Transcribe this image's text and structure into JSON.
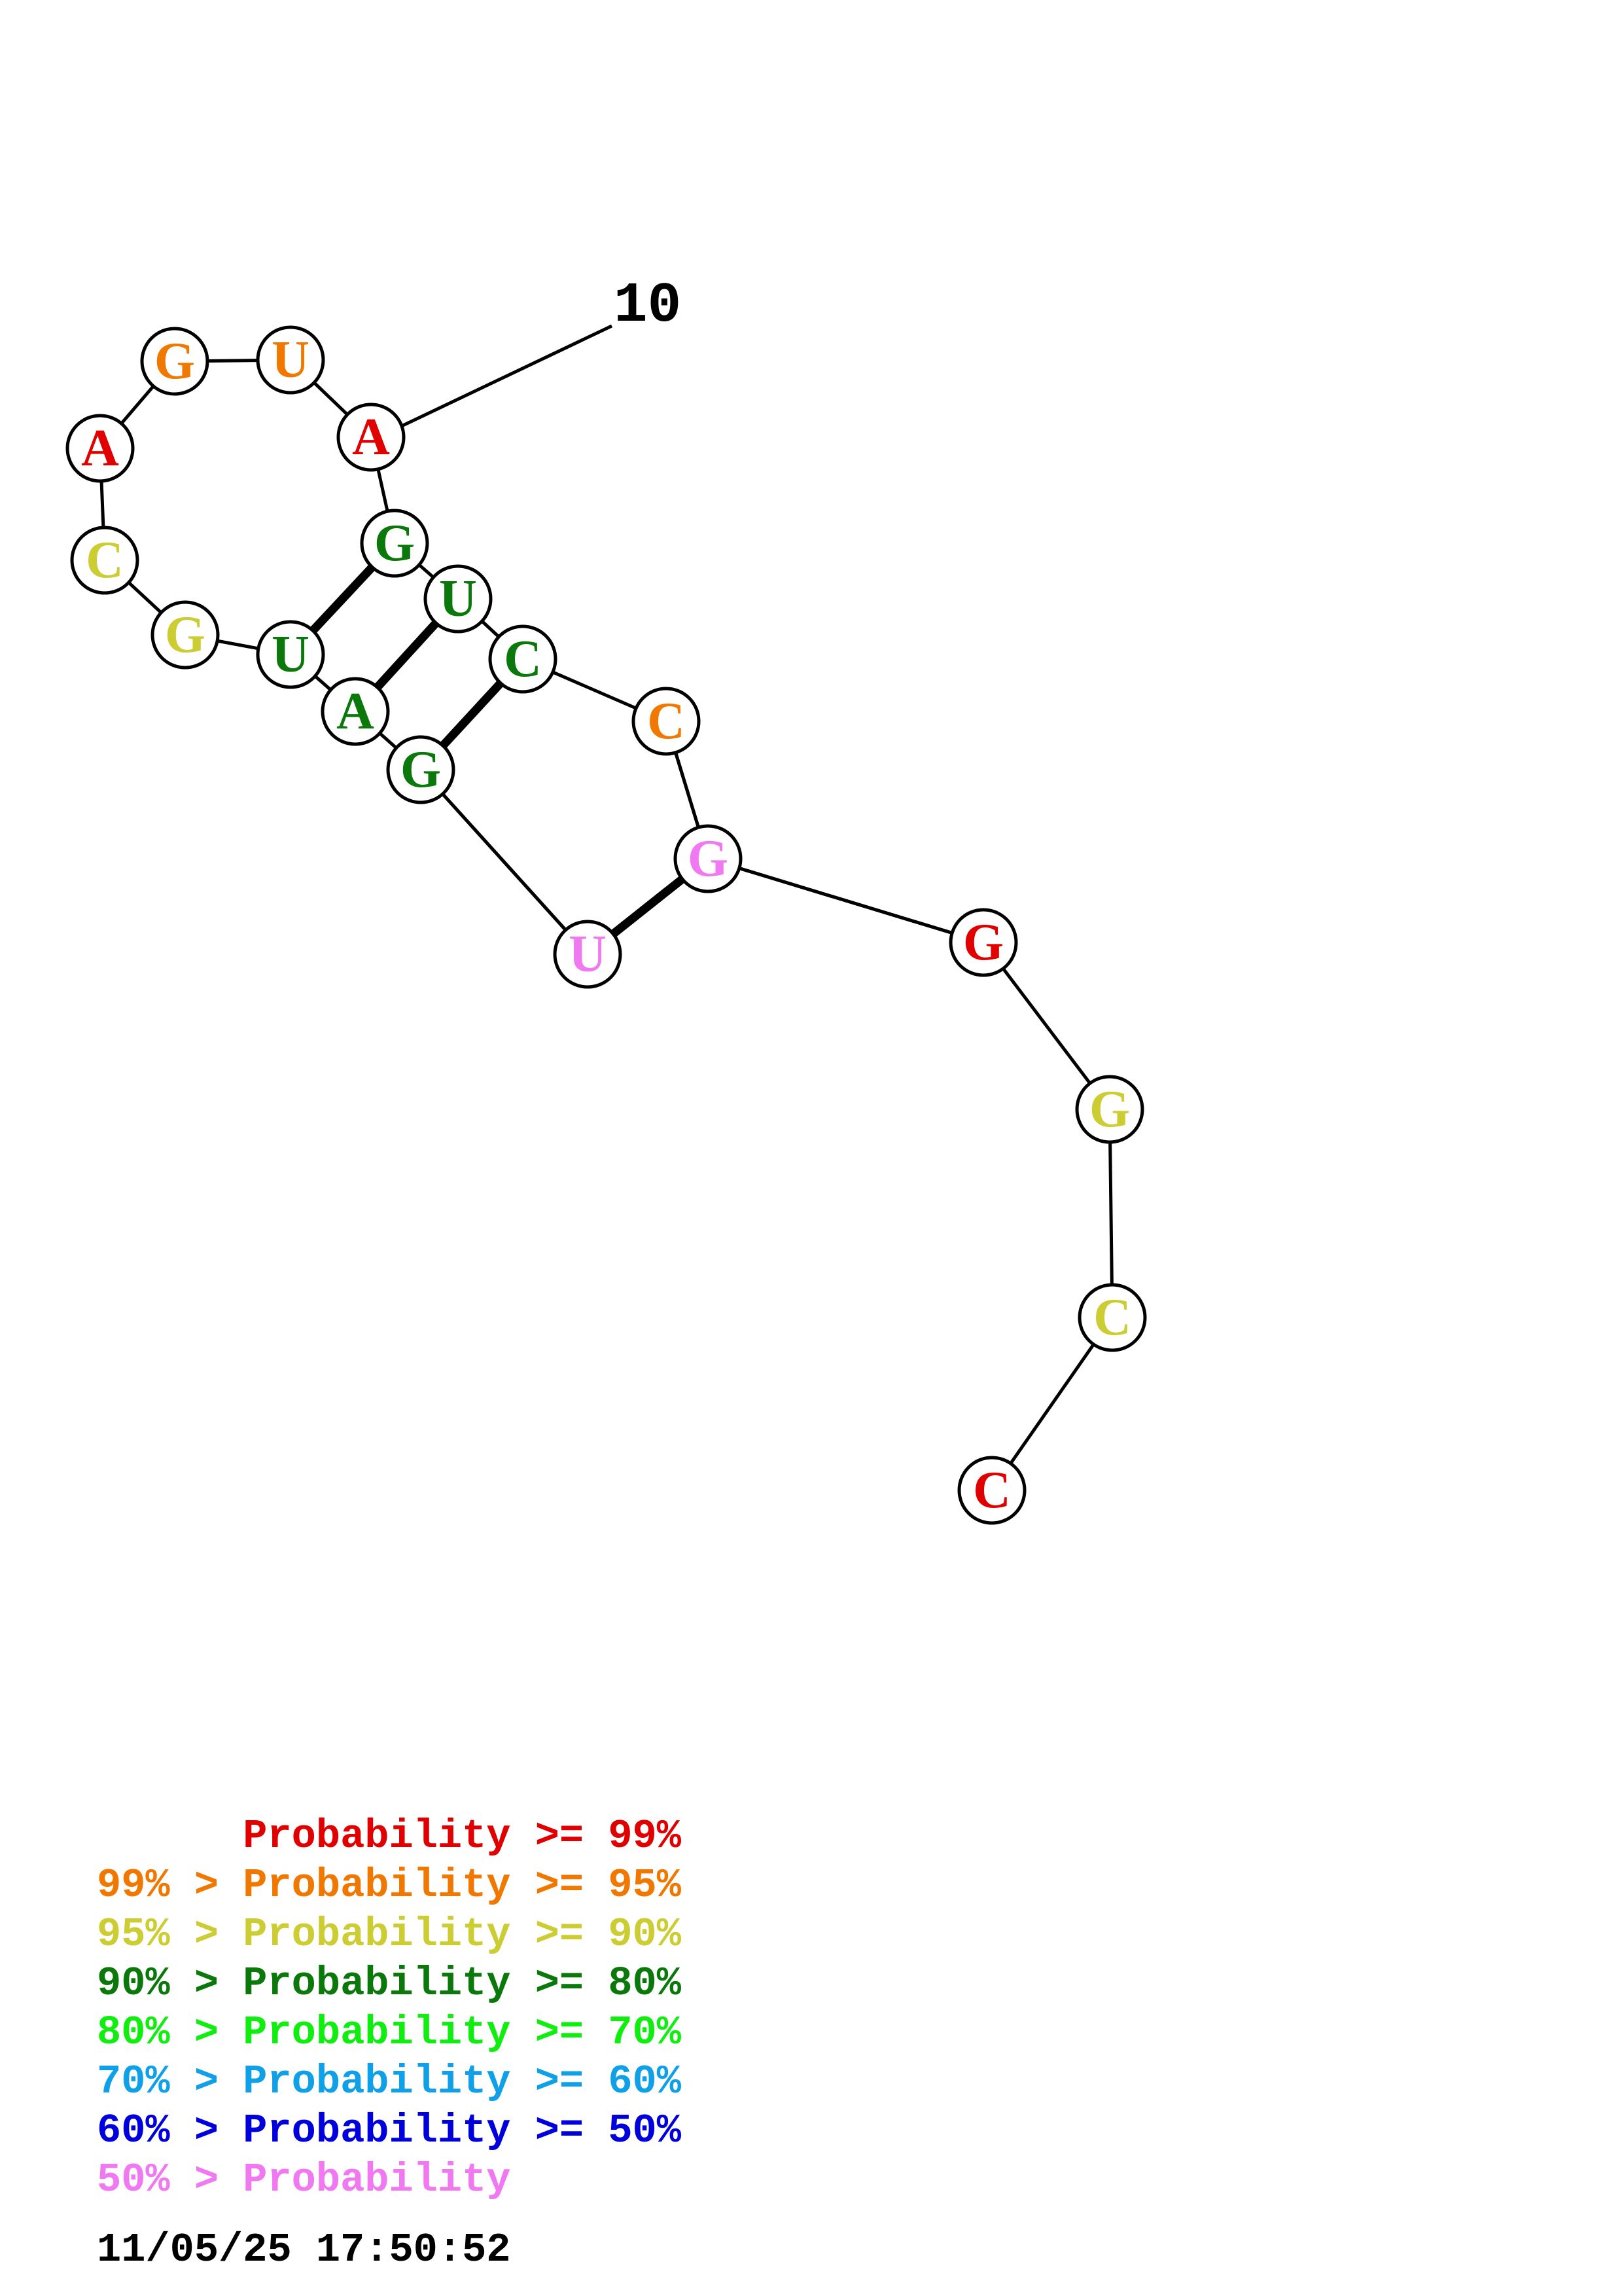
{
  "colors": {
    "p99": "#e00000",
    "p95": "#f07800",
    "p90": "#cccc33",
    "p80": "#0a780a",
    "p70": "#10ee10",
    "p60": "#10a0e8",
    "p50": "#0000dd",
    "plow": "#f078f0"
  },
  "structure": {
    "position_label": "10",
    "nucleotides": [
      {
        "base": "A",
        "color": "p99"
      },
      {
        "base": "G",
        "color": "p95"
      },
      {
        "base": "U",
        "color": "p95"
      },
      {
        "base": "A",
        "color": "p99"
      },
      {
        "base": "C",
        "color": "p90"
      },
      {
        "base": "G",
        "color": "p90"
      },
      {
        "base": "U",
        "color": "p80"
      },
      {
        "base": "A",
        "color": "p80"
      },
      {
        "base": "G",
        "color": "p80"
      },
      {
        "base": "U",
        "color": "plow"
      },
      {
        "base": "G",
        "color": "plow"
      },
      {
        "base": "C",
        "color": "p95"
      },
      {
        "base": "C",
        "color": "p80"
      },
      {
        "base": "U",
        "color": "p80"
      },
      {
        "base": "G",
        "color": "p80"
      },
      {
        "base": "G",
        "color": "p99"
      },
      {
        "base": "G",
        "color": "p90"
      },
      {
        "base": "C",
        "color": "p90"
      },
      {
        "base": "C",
        "color": "p99"
      }
    ]
  },
  "legend": [
    {
      "prefix": "    ",
      "text": "Probability >= 99%",
      "color": "p99"
    },
    {
      "prefix": "99% > ",
      "text": "Probability >= 95%",
      "color": "p95"
    },
    {
      "prefix": "95% > ",
      "text": "Probability >= 90%",
      "color": "p90"
    },
    {
      "prefix": "90% > ",
      "text": "Probability >= 80%",
      "color": "p80"
    },
    {
      "prefix": "80% > ",
      "text": "Probability >= 70%",
      "color": "p70"
    },
    {
      "prefix": "70% > ",
      "text": "Probability >= 60%",
      "color": "p60"
    },
    {
      "prefix": "60% > ",
      "text": "Probability >= 50%",
      "color": "p50"
    },
    {
      "prefix": "50% > ",
      "text": "Probability",
      "color": "plow"
    }
  ],
  "timestamp": "11/05/25 17:50:52"
}
